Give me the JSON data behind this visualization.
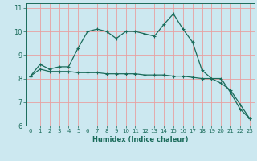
{
  "xlabel": "Humidex (Indice chaleur)",
  "bg_color": "#cce8f0",
  "grid_color": "#e8a0a0",
  "line_color": "#1a6b5a",
  "tick_color": "#1a6b5a",
  "xlim": [
    -0.5,
    23.5
  ],
  "ylim": [
    6,
    11.2
  ],
  "xticks": [
    0,
    1,
    2,
    3,
    4,
    5,
    6,
    7,
    8,
    9,
    10,
    11,
    12,
    13,
    14,
    15,
    16,
    17,
    18,
    19,
    20,
    21,
    22,
    23
  ],
  "yticks": [
    6,
    7,
    8,
    9,
    10,
    11
  ],
  "curve1_x": [
    0,
    1,
    2,
    3,
    4,
    5,
    6,
    7,
    8,
    9,
    10,
    11,
    12,
    13,
    14,
    15,
    16,
    17,
    18,
    19,
    20,
    21,
    22,
    23
  ],
  "curve1_y": [
    8.1,
    8.6,
    8.4,
    8.5,
    8.5,
    9.3,
    10.0,
    10.1,
    10.0,
    9.7,
    10.0,
    10.0,
    9.9,
    9.8,
    10.3,
    10.75,
    10.1,
    9.55,
    8.35,
    8.0,
    8.0,
    7.4,
    6.7,
    6.3
  ],
  "curve2_x": [
    0,
    1,
    2,
    3,
    4,
    5,
    6,
    7,
    8,
    9,
    10,
    11,
    12,
    13,
    14,
    15,
    16,
    17,
    18,
    19,
    20,
    21,
    22,
    23
  ],
  "curve2_y": [
    8.1,
    8.4,
    8.3,
    8.3,
    8.3,
    8.25,
    8.25,
    8.25,
    8.2,
    8.2,
    8.2,
    8.2,
    8.15,
    8.15,
    8.15,
    8.1,
    8.1,
    8.05,
    8.0,
    8.0,
    7.8,
    7.5,
    6.9,
    6.3
  ]
}
